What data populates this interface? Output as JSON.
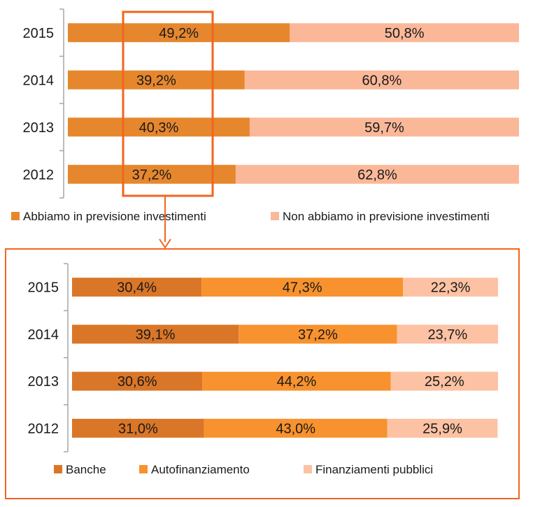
{
  "chart_data": [
    {
      "type": "bar",
      "orientation": "horizontal",
      "stacked": true,
      "categories": [
        "2015",
        "2014",
        "2013",
        "2012"
      ],
      "series": [
        {
          "name": "Abbiamo in previsione investimenti",
          "values": [
            49.2,
            39.2,
            40.3,
            37.2
          ],
          "labels": [
            "49,2%",
            "39,2%",
            "40,3%",
            "37,2%"
          ],
          "color": "#E6872E"
        },
        {
          "name": "Non abbiamo in previsione investimenti",
          "values": [
            50.8,
            60.8,
            59.7,
            62.8
          ],
          "labels": [
            "50,8%",
            "60,8%",
            "59,7%",
            "62,8%"
          ],
          "color": "#FBB899"
        }
      ],
      "xlim": [
        0,
        100
      ],
      "legend": "bottom",
      "grid": false,
      "highlight": "first series (orange box)",
      "highlight_color": "#F2651D"
    },
    {
      "type": "bar",
      "orientation": "horizontal",
      "stacked": true,
      "categories": [
        "2015",
        "2014",
        "2013",
        "2012"
      ],
      "series": [
        {
          "name": "Banche",
          "values": [
            30.4,
            39.1,
            30.6,
            31.0
          ],
          "labels": [
            "30,4%",
            "39,1%",
            "30,6%",
            "31,0%"
          ],
          "color": "#DA7627"
        },
        {
          "name": "Autofinanziamento",
          "values": [
            47.3,
            37.2,
            44.2,
            43.0
          ],
          "labels": [
            "47,3%",
            "37,2%",
            "44,2%",
            "43,0%"
          ],
          "color": "#F8922E"
        },
        {
          "name": "Finanziamenti pubblici",
          "values": [
            22.3,
            23.7,
            25.2,
            25.9
          ],
          "labels": [
            "22,3%",
            "23,7%",
            "25,2%",
            "25,9%"
          ],
          "color": "#FCC2A3"
        }
      ],
      "xlim": [
        0,
        100
      ],
      "legend": "bottom",
      "grid": false,
      "frame_color": "#F2651D"
    }
  ]
}
